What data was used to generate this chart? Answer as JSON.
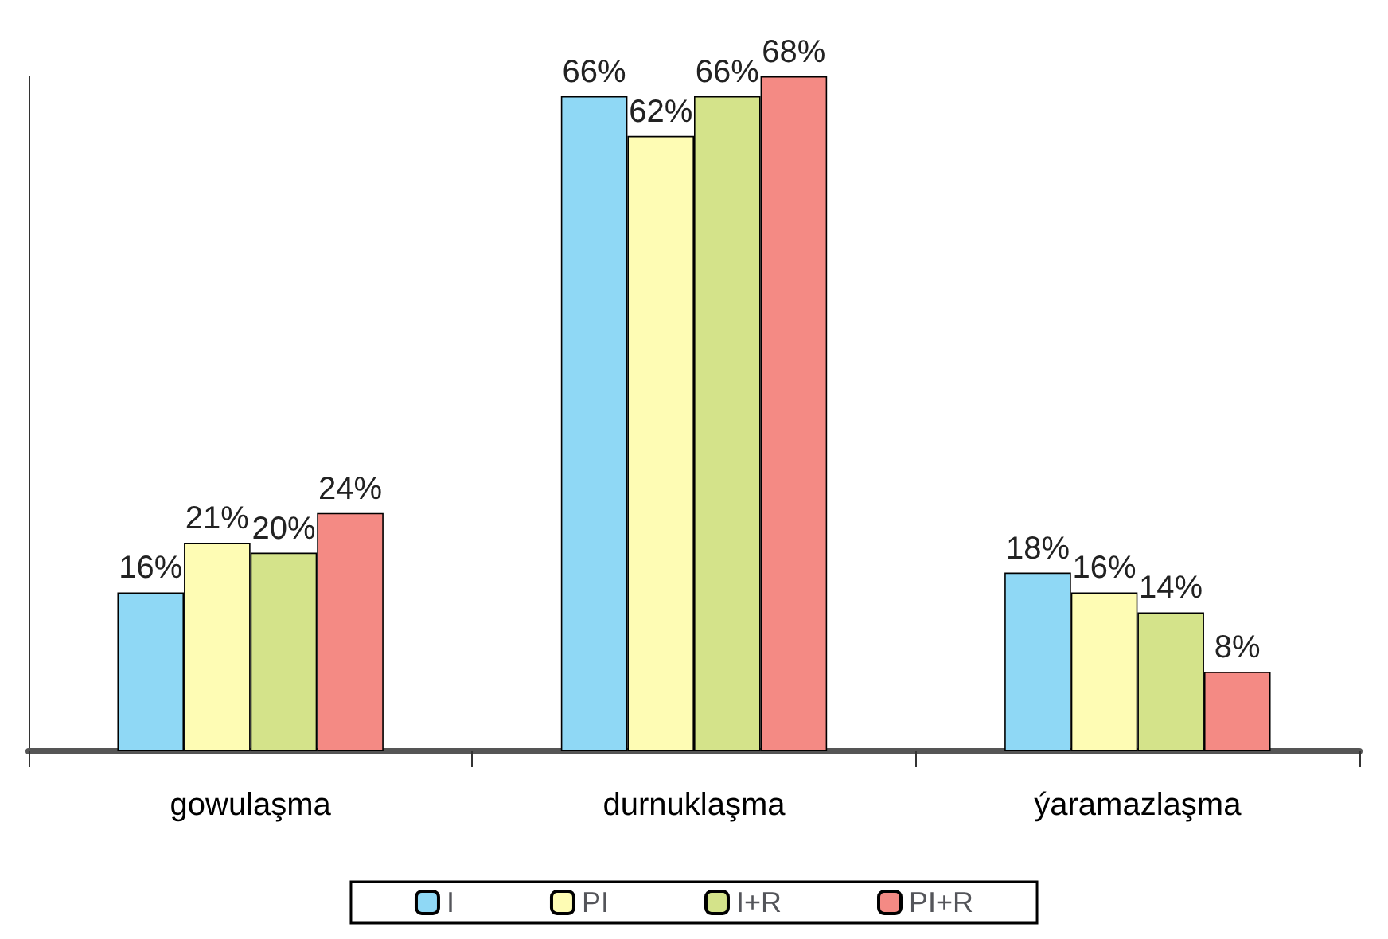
{
  "chart_data": {
    "type": "bar",
    "categories": [
      "gowulaşma",
      "durnuklaşma",
      "ýaramazlaşma"
    ],
    "series": [
      {
        "name": "I",
        "color": "#8fd8f5",
        "values": [
          16,
          66,
          18
        ],
        "value_labels": [
          "16%",
          "66%",
          "18%"
        ]
      },
      {
        "name": "PI",
        "color": "#fefcb4",
        "values": [
          21,
          62,
          16
        ],
        "value_labels": [
          "21%",
          "62%",
          "16%"
        ]
      },
      {
        "name": "I+R",
        "color": "#d4e38a",
        "values": [
          20,
          66,
          14
        ],
        "value_labels": [
          "20%",
          "66%",
          "14%"
        ]
      },
      {
        "name": "PI+R",
        "color": "#f48a84",
        "values": [
          24,
          68,
          8
        ],
        "value_labels": [
          "24%",
          "68%",
          "8%"
        ]
      }
    ],
    "grid": false,
    "legend": "bottom"
  }
}
